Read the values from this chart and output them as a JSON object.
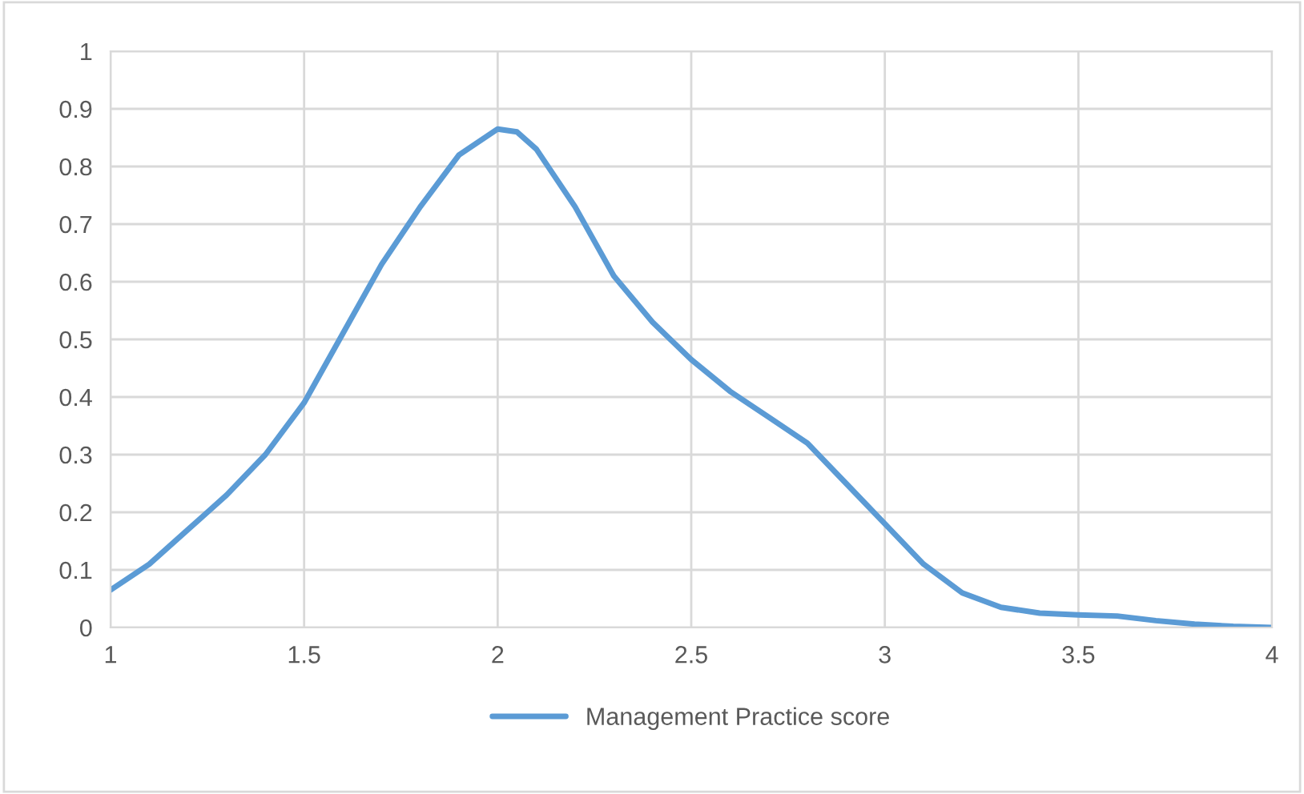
{
  "chart_data": {
    "type": "line",
    "x": [
      1,
      1.1,
      1.2,
      1.3,
      1.4,
      1.5,
      1.6,
      1.7,
      1.8,
      1.9,
      2.0,
      2.05,
      2.1,
      2.2,
      2.3,
      2.4,
      2.5,
      2.6,
      2.7,
      2.8,
      2.9,
      3.0,
      3.1,
      3.2,
      3.3,
      3.4,
      3.5,
      3.6,
      3.7,
      3.8,
      3.9,
      4.0
    ],
    "series": [
      {
        "name": "Management Practice score",
        "color": "#5b9bd5",
        "values": [
          0.065,
          0.11,
          0.17,
          0.23,
          0.3,
          0.39,
          0.51,
          0.63,
          0.73,
          0.82,
          0.865,
          0.86,
          0.83,
          0.73,
          0.61,
          0.53,
          0.465,
          0.41,
          0.365,
          0.32,
          0.25,
          0.18,
          0.11,
          0.06,
          0.035,
          0.025,
          0.022,
          0.02,
          0.012,
          0.006,
          0.002,
          0.0
        ]
      }
    ],
    "xlim": [
      1,
      4
    ],
    "xticks": [
      1,
      1.5,
      2,
      2.5,
      3,
      3.5,
      4
    ],
    "ylim": [
      0,
      1
    ],
    "yticks": [
      0,
      0.1,
      0.2,
      0.3,
      0.4,
      0.5,
      0.6,
      0.7,
      0.8,
      0.9,
      1
    ],
    "grid": true,
    "legend": "bottom",
    "marker": "none",
    "line_style": "solid"
  }
}
